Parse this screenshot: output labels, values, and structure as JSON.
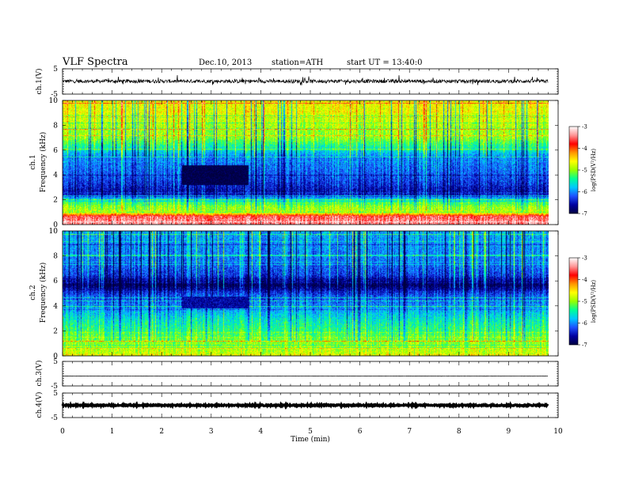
{
  "header": {
    "title": "VLF  Spectra",
    "date": "Dec.10, 2013",
    "station": "station=ATH",
    "start_ut": "start  UT  =   13:40:0"
  },
  "colors": {
    "colormap": [
      "#000040",
      "#0000a0",
      "#1e50ff",
      "#00c8ff",
      "#00ff96",
      "#96ff00",
      "#ffff00",
      "#ff9600",
      "#ff0000",
      "#ff9696",
      "#ffffff"
    ]
  },
  "chart_data": [
    {
      "type": "line",
      "name": "ch1-waveform",
      "ylabel": "ch.1(V)",
      "ylim": [
        -5,
        5
      ],
      "yticks": [
        "5",
        "-5"
      ],
      "x_range": [
        0,
        9.8
      ],
      "baseline": 0.1,
      "noise_amplitude": 0.7
    },
    {
      "type": "heatmap",
      "name": "ch1-spectrogram",
      "ylabel": "Frequency (kHz)",
      "channel_label": "ch.1",
      "ylim": [
        0,
        10
      ],
      "yticks": [
        "0",
        "2",
        "4",
        "6",
        "8",
        "10"
      ],
      "x_range": [
        0,
        9.8
      ],
      "colorbar": {
        "label": "log(PSD(V²/Hz)",
        "range": [
          -7,
          -3
        ],
        "ticks": [
          "-3",
          "-4",
          "-5",
          "-6",
          "-7"
        ]
      },
      "profile": [
        {
          "f": 0.3,
          "v": -3.4
        },
        {
          "f": 0.7,
          "v": -3.6
        },
        {
          "f": 1.0,
          "v": -4.8
        },
        {
          "f": 1.5,
          "v": -5.0
        },
        {
          "f": 2.0,
          "v": -5.6
        },
        {
          "f": 2.6,
          "v": -6.6
        },
        {
          "f": 3.5,
          "v": -6.3
        },
        {
          "f": 4.5,
          "v": -6.1
        },
        {
          "f": 5.5,
          "v": -6.0
        },
        {
          "f": 6.2,
          "v": -5.5
        },
        {
          "f": 7.0,
          "v": -5.0
        },
        {
          "f": 8.0,
          "v": -4.9
        },
        {
          "f": 9.0,
          "v": -4.7
        },
        {
          "f": 10.0,
          "v": -4.6
        }
      ],
      "quiet_patch": {
        "t": [
          2.4,
          3.75
        ],
        "f": [
          3.2,
          4.8
        ],
        "v": -7
      }
    },
    {
      "type": "heatmap",
      "name": "ch2-spectrogram",
      "ylabel": "Frequency (kHz)",
      "channel_label": "ch.2",
      "ylim": [
        0,
        10
      ],
      "yticks": [
        "0",
        "2",
        "4",
        "6",
        "8",
        "10"
      ],
      "x_range": [
        0,
        9.8
      ],
      "colorbar": {
        "label": "log(PSD(V²/Hz)",
        "range": [
          -7,
          -3
        ],
        "ticks": [
          "-3",
          "-4",
          "-5",
          "-6",
          "-7"
        ]
      },
      "profile": [
        {
          "f": 0.3,
          "v": -4.8
        },
        {
          "f": 1.0,
          "v": -5.0
        },
        {
          "f": 2.0,
          "v": -5.3
        },
        {
          "f": 3.0,
          "v": -5.6
        },
        {
          "f": 4.0,
          "v": -6.0
        },
        {
          "f": 5.0,
          "v": -6.3
        },
        {
          "f": 5.7,
          "v": -6.9
        },
        {
          "f": 6.5,
          "v": -6.3
        },
        {
          "f": 7.5,
          "v": -6.1
        },
        {
          "f": 8.5,
          "v": -6.0
        },
        {
          "f": 10.0,
          "v": -5.9
        }
      ],
      "quiet_patch": {
        "t": [
          2.4,
          3.75
        ],
        "f": [
          3.8,
          4.8
        ],
        "v": -6.6
      }
    },
    {
      "type": "line",
      "name": "ch3-waveform",
      "ylabel": "ch.3(V)",
      "ylim": [
        -5,
        5
      ],
      "yticks": [
        "5",
        "-5"
      ],
      "x_range": [
        0,
        9.8
      ],
      "baseline": -1.0,
      "noise_amplitude": 0.03
    },
    {
      "type": "line",
      "name": "ch4-waveform",
      "ylabel": "ch.4(V)",
      "ylim": [
        -5,
        5
      ],
      "yticks": [
        "5",
        "-5"
      ],
      "x_range": [
        0,
        9.8
      ],
      "baseline": 0.0,
      "noise_amplitude": 0.25
    }
  ],
  "xaxis": {
    "label": "Time  (min)",
    "ticks": [
      "0",
      "1",
      "2",
      "3",
      "4",
      "5",
      "6",
      "7",
      "8",
      "9",
      "10"
    ],
    "range": [
      0,
      10
    ]
  }
}
